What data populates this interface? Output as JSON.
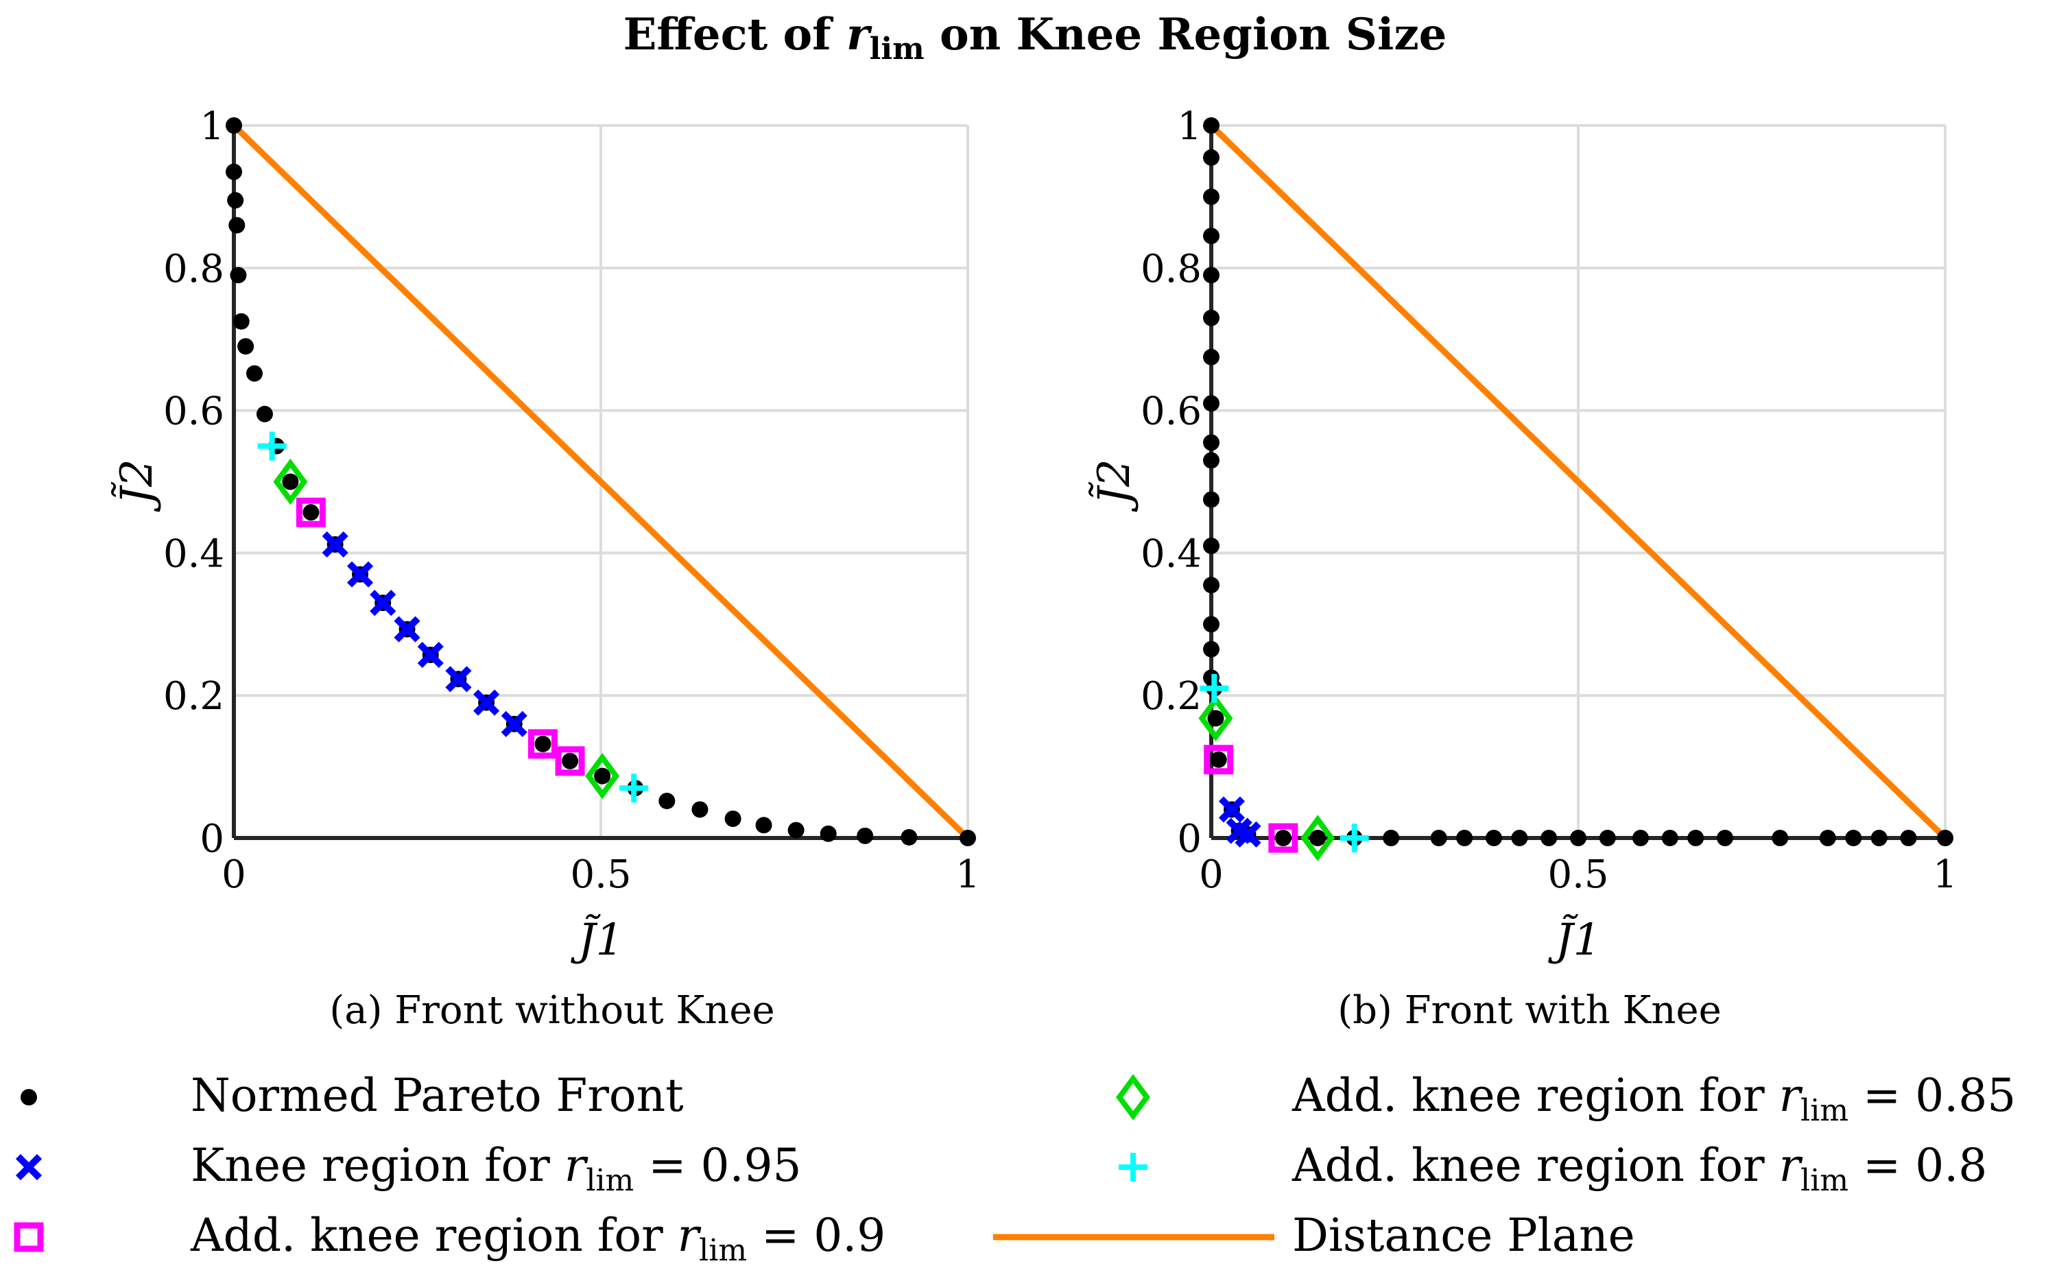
{
  "title": {
    "prefix": "Effect of ",
    "var": "r",
    "sub": "lim",
    "suffix": " on Knee Region Size"
  },
  "colors": {
    "pareto": "#000000",
    "knee95": "#0000ff",
    "add90": "#ff00ff",
    "add85": "#00dd00",
    "add80": "#00ffff",
    "plane": "#ff8000",
    "grid": "#dcdcdc",
    "axis": "#262626"
  },
  "chart_data": [
    {
      "type": "scatter",
      "caption": "(a)  Front without Knee",
      "xlabel": "J̃1",
      "ylabel": "J̃2",
      "xlim": [
        0,
        1
      ],
      "ylim": [
        0,
        1
      ],
      "xticks": [
        0,
        0.5,
        1
      ],
      "xtick_labels": [
        "0",
        "0.5",
        "1"
      ],
      "yticks": [
        0,
        0.2,
        0.4,
        0.6,
        0.8,
        1
      ],
      "ytick_labels": [
        "0",
        "0.2",
        "0.4",
        "0.6",
        "0.8",
        "1"
      ],
      "grid": true,
      "series": [
        {
          "name": "Normed Pareto Front",
          "marker": "dot",
          "x": [
            0,
            0,
            0.002,
            0.004,
            0.006,
            0.01,
            0.016,
            0.028,
            0.042,
            0.058,
            0.077,
            0.105,
            0.138,
            0.172,
            0.203,
            0.236,
            0.268,
            0.306,
            0.344,
            0.382,
            0.421,
            0.458,
            0.502,
            0.547,
            0.59,
            0.635,
            0.68,
            0.722,
            0.766,
            0.81,
            0.86,
            0.92,
            1.0
          ],
          "y": [
            1.0,
            0.935,
            0.895,
            0.86,
            0.79,
            0.725,
            0.69,
            0.652,
            0.595,
            0.55,
            0.5,
            0.457,
            0.412,
            0.37,
            0.33,
            0.293,
            0.257,
            0.223,
            0.19,
            0.16,
            0.132,
            0.108,
            0.087,
            0.07,
            0.052,
            0.04,
            0.027,
            0.018,
            0.011,
            0.006,
            0.003,
            0.001,
            0.0
          ]
        },
        {
          "name": "Knee region for r_lim = 0.95",
          "marker": "x",
          "x": [
            0.138,
            0.172,
            0.203,
            0.236,
            0.268,
            0.306,
            0.344,
            0.382
          ],
          "y": [
            0.412,
            0.37,
            0.33,
            0.293,
            0.257,
            0.223,
            0.19,
            0.16
          ]
        },
        {
          "name": "Add. knee region for r_lim = 0.9",
          "marker": "square",
          "x": [
            0.105,
            0.421,
            0.458
          ],
          "y": [
            0.457,
            0.132,
            0.108
          ]
        },
        {
          "name": "Add. knee region for r_lim = 0.85",
          "marker": "diamond",
          "x": [
            0.077,
            0.502
          ],
          "y": [
            0.5,
            0.087
          ]
        },
        {
          "name": "Add. knee region for r_lim = 0.8",
          "marker": "plus",
          "x": [
            0.052,
            0.545
          ],
          "y": [
            0.55,
            0.07
          ]
        },
        {
          "name": "Distance Plane",
          "marker": "line",
          "x": [
            0,
            1
          ],
          "y": [
            1,
            0
          ]
        }
      ]
    },
    {
      "type": "scatter",
      "caption": "(b)  Front with Knee",
      "xlabel": "J̃1",
      "ylabel": "J̃2",
      "xlim": [
        0,
        1
      ],
      "ylim": [
        0,
        1
      ],
      "xticks": [
        0,
        0.5,
        1
      ],
      "xtick_labels": [
        "0",
        "0.5",
        "1"
      ],
      "yticks": [
        0,
        0.2,
        0.4,
        0.6,
        0.8,
        1
      ],
      "ytick_labels": [
        "0",
        "0.2",
        "0.4",
        "0.6",
        "0.8",
        "1"
      ],
      "grid": true,
      "series": [
        {
          "name": "Normed Pareto Front",
          "marker": "dot",
          "x": [
            0,
            0,
            0,
            0,
            0,
            0,
            0,
            0,
            0,
            0,
            0,
            0,
            0,
            0,
            0,
            0,
            0.004,
            0.006,
            0.01,
            0.028,
            0.038,
            0.05,
            0.098,
            0.145,
            0.195,
            0.245,
            0.31,
            0.345,
            0.385,
            0.42,
            0.46,
            0.5,
            0.54,
            0.585,
            0.625,
            0.66,
            0.7,
            0.775,
            0.84,
            0.875,
            0.91,
            0.95,
            1.0
          ],
          "y": [
            1.0,
            0.955,
            0.9,
            0.845,
            0.79,
            0.73,
            0.675,
            0.61,
            0.555,
            0.53,
            0.475,
            0.41,
            0.355,
            0.3,
            0.265,
            0.225,
            0.21,
            0.168,
            0.11,
            0.04,
            0.01,
            0.005,
            0.0,
            0.0,
            0.0,
            0.0,
            0.0,
            0.0,
            0.0,
            0.0,
            0.0,
            0.0,
            0.0,
            0.0,
            0.0,
            0.0,
            0.0,
            0.0,
            0.0,
            0.0,
            0.0,
            0.0,
            0.0
          ]
        },
        {
          "name": "Knee region for r_lim = 0.95",
          "marker": "x",
          "x": [
            0.028,
            0.038,
            0.05
          ],
          "y": [
            0.04,
            0.01,
            0.005
          ]
        },
        {
          "name": "Add. knee region for r_lim = 0.9",
          "marker": "square",
          "x": [
            0.01,
            0.098
          ],
          "y": [
            0.11,
            0.0
          ]
        },
        {
          "name": "Add. knee region for r_lim = 0.85",
          "marker": "diamond",
          "x": [
            0.006,
            0.145
          ],
          "y": [
            0.168,
            0.0
          ]
        },
        {
          "name": "Add. knee region for r_lim = 0.8",
          "marker": "plus",
          "x": [
            0.004,
            0.195
          ],
          "y": [
            0.21,
            0.0
          ]
        },
        {
          "name": "Distance Plane",
          "marker": "line",
          "x": [
            0,
            1
          ],
          "y": [
            1,
            0
          ]
        }
      ]
    }
  ],
  "legend": {
    "items": [
      {
        "marker": "dot",
        "text": "Normed Pareto Front"
      },
      {
        "marker": "x",
        "text_prefix": "Knee region for ",
        "value": " = 0.95"
      },
      {
        "marker": "square",
        "text_prefix": "Add. knee region for ",
        "value": " = 0.9"
      },
      {
        "marker": "diamond",
        "text_prefix": "Add. knee region for ",
        "value": " = 0.85"
      },
      {
        "marker": "plus",
        "text_prefix": "Add. knee region for ",
        "value": " = 0.8"
      },
      {
        "marker": "line",
        "text": "Distance Plane"
      }
    ],
    "var": "r",
    "sub": "lim"
  }
}
